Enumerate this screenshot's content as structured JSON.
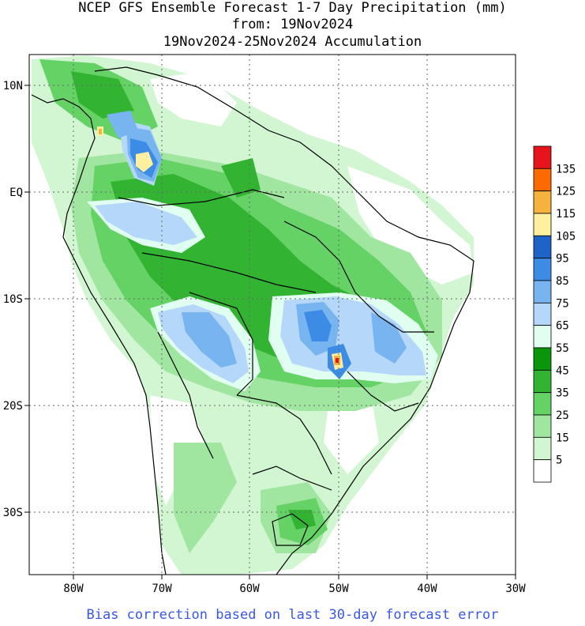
{
  "header": {
    "line1": "NCEP GFS Ensemble Forecast 1-7 Day Precipitation (mm)",
    "line2": "from: 19Nov2024",
    "line3": "19Nov2024-25Nov2024 Accumulation"
  },
  "axes": {
    "lon_labels": [
      "80W",
      "70W",
      "60W",
      "50W",
      "40W",
      "30W"
    ],
    "lat_labels": [
      "10N",
      "EQ",
      "10S",
      "20S",
      "30S"
    ]
  },
  "legend": {
    "labels": [
      "135",
      "125",
      "115",
      "105",
      "95",
      "85",
      "75",
      "65",
      "55",
      "45",
      "35",
      "25",
      "15",
      "5"
    ],
    "colors": [
      "#e8141c",
      "#ff6a00",
      "#f5b23c",
      "#fff0a0",
      "#1e64c8",
      "#3c8ce6",
      "#78b4f0",
      "#b4d7fa",
      "#e1fff0",
      "#0a960a",
      "#32b432",
      "#64d264",
      "#a0e6a0",
      "#d2f5d2",
      "#ffffff"
    ]
  },
  "footer": "Bias correction based on last 30-day forecast error"
}
